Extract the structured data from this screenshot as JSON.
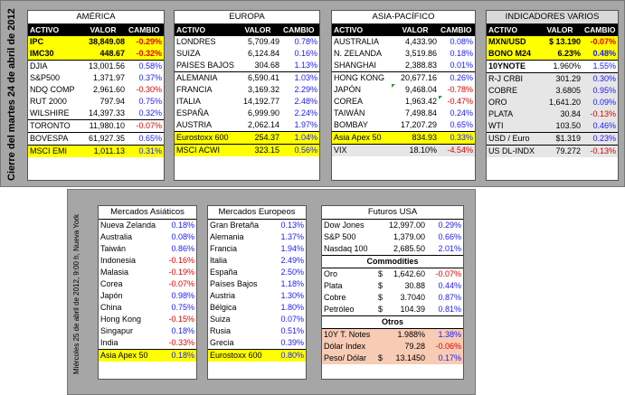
{
  "top_label": "Cierre del martes 24 de abril de 2012",
  "bottom_label": "Miércoles 25 de abril de 2012, 9:00 h, Nueva York",
  "colors": {
    "positive": "#1a1aff",
    "negative": "#e00000",
    "highlight": "#ffff00",
    "panel": "#a6a6a6"
  },
  "america": {
    "title": "AMÉRICA",
    "headers": [
      "ACTIVO",
      "VALOR",
      "CAMBIO"
    ],
    "rows": [
      {
        "name": "IPC",
        "value": "38,849.08",
        "change": "-0.29%"
      },
      {
        "name": "IMC30",
        "value": "448.67",
        "change": "-0.32%"
      },
      {
        "name": "DJIA",
        "value": "13,001.56",
        "change": "0.58%"
      },
      {
        "name": "S&P500",
        "value": "1,371.97",
        "change": "0.37%"
      },
      {
        "name": "NDQ COMP",
        "value": "2,961.60",
        "change": "-0.30%"
      },
      {
        "name": "RUT 2000",
        "value": "797.94",
        "change": "0.75%"
      },
      {
        "name": "WILSHIRE",
        "value": "14,397.33",
        "change": "0.32%"
      },
      {
        "name": "TORONTO",
        "value": "11,980.10",
        "change": "-0.07%"
      },
      {
        "name": "BOVESPA",
        "value": "61,927.35",
        "change": "0.65%"
      }
    ],
    "footer": {
      "name": "MSCI EMI",
      "value": "1,011.13",
      "change": "0.31%"
    }
  },
  "europa": {
    "title": "EUROPA",
    "headers": [
      "ACTIVO",
      "VALOR",
      "CAMBIO"
    ],
    "rows": [
      {
        "name": "LONDRES",
        "value": "5,709.49",
        "change": "0.78%"
      },
      {
        "name": "SUIZA",
        "value": "6,124.84",
        "change": "0.16%"
      },
      {
        "name": "PAISES BAJOS",
        "value": "304.68",
        "change": "1.13%"
      },
      {
        "name": "ALEMANIA",
        "value": "6,590.41",
        "change": "1.03%"
      },
      {
        "name": "FRANCIA",
        "value": "3,169.32",
        "change": "2.29%"
      },
      {
        "name": "ITALIA",
        "value": "14,192.77",
        "change": "2.48%"
      },
      {
        "name": "ESPAÑA",
        "value": "6,999.90",
        "change": "2.24%"
      },
      {
        "name": "AUSTRIA",
        "value": "2,062.14",
        "change": "1.97%"
      },
      {
        "name": "Eurostoxx 600",
        "value": "254.37",
        "change": "1.04%"
      }
    ],
    "footer": {
      "name": "MSCI ACWI",
      "value": "323.15",
      "change": "0.56%"
    }
  },
  "asia": {
    "title": "ASIA-PACÍFICO",
    "headers": [
      "ACTIVO",
      "VALOR",
      "CAMBIO"
    ],
    "rows": [
      {
        "name": "AUSTRALIA",
        "value": "4,433.90",
        "change": "0.08%"
      },
      {
        "name": "N. ZELANDA",
        "value": "3,519.86",
        "change": "0.18%"
      },
      {
        "name": "SHANGHAI",
        "value": "2,388.83",
        "change": "0.01%"
      },
      {
        "name": "HONG KONG",
        "value": "20,677.16",
        "change": "0.26%"
      },
      {
        "name": "JAPÓN",
        "value": "9,468.04",
        "change": "-0.78%"
      },
      {
        "name": "COREA",
        "value": "1,963.42",
        "change": "-0.47%"
      },
      {
        "name": "TAIWÁN",
        "value": "7,498.84",
        "change": "0.24%"
      },
      {
        "name": "BOMBAY",
        "value": "17,207.29",
        "change": "0.65%"
      },
      {
        "name": "Asia Apex 50",
        "value": "834.93",
        "change": "0.33%"
      }
    ],
    "footer": {
      "name": "VIX",
      "value": "18.10%",
      "change": "-4.54%"
    }
  },
  "indicadores": {
    "title": "INDICADORES VARIOS",
    "headers": [
      "ACTIVO",
      "VALOR",
      "CAMBIO"
    ],
    "rows": [
      {
        "name": "MXN/USD",
        "value": "$ 13.190",
        "change": "-0.07%"
      },
      {
        "name": "BONO M24",
        "value": "6.23%",
        "change": "0.48%"
      },
      {
        "name": "10YNOTE",
        "value": "1.960%",
        "change": "1.55%"
      },
      {
        "name": "R-J CRBI",
        "value": "301.29",
        "change": "0.30%"
      },
      {
        "name": "COBRE",
        "value": "3.6805",
        "change": "0.95%"
      },
      {
        "name": "ORO",
        "value": "1,641.20",
        "change": "0.09%"
      },
      {
        "name": "PLATA",
        "value": "30.84",
        "change": "-0.13%"
      },
      {
        "name": "WTI",
        "value": "103.50",
        "change": "0.46%"
      },
      {
        "name": "USD / Euro",
        "value": "$1.319",
        "change": "0.23%"
      }
    ],
    "footer": {
      "name": "US DL-INDX",
      "value": "79.272",
      "change": "-0.13%"
    }
  },
  "asiaticos": {
    "title": "Mercados Asiáticos",
    "rows": [
      {
        "name": "Nueva Zelanda",
        "change": "0.18%"
      },
      {
        "name": "Australia",
        "change": "0.08%"
      },
      {
        "name": "Taiwán",
        "change": "0.86%"
      },
      {
        "name": "Indonesia",
        "change": "-0.16%"
      },
      {
        "name": "Malasia",
        "change": "-0.19%"
      },
      {
        "name": "Corea",
        "change": "-0.07%"
      },
      {
        "name": "Japón",
        "change": "0.98%"
      },
      {
        "name": "China",
        "change": "0.75%"
      },
      {
        "name": "Hong Kong",
        "change": "-0.15%"
      },
      {
        "name": "Singapur",
        "change": "0.18%"
      },
      {
        "name": "India",
        "change": "-0.33%"
      }
    ],
    "footer": {
      "name": "Asia Apex 50",
      "change": "0.18%"
    }
  },
  "europeos": {
    "title": "Mercados Europeos",
    "rows": [
      {
        "name": "Gran Bretaña",
        "change": "0.13%"
      },
      {
        "name": "Alemania",
        "change": "1.37%"
      },
      {
        "name": "Francia",
        "change": "1.94%"
      },
      {
        "name": "Italia",
        "change": "2.49%"
      },
      {
        "name": "España",
        "change": "2.50%"
      },
      {
        "name": "Países Bajos",
        "change": "1.18%"
      },
      {
        "name": "Austria",
        "change": "1.30%"
      },
      {
        "name": "Bélgica",
        "change": "1.80%"
      },
      {
        "name": "Suiza",
        "change": "0.07%"
      },
      {
        "name": "Rusia",
        "change": "0.51%"
      },
      {
        "name": "Grecia",
        "change": "0.39%"
      }
    ],
    "footer": {
      "name": "Eurostoxx 600",
      "change": "0.80%"
    }
  },
  "futuros": {
    "title": "Futuros USA",
    "rows": [
      {
        "name": "Dow Jones",
        "value": "12,997.00",
        "change": "0.29%"
      },
      {
        "name": "S&P 500",
        "value": "1,379.00",
        "change": "0.66%"
      },
      {
        "name": "Nasdaq 100",
        "value": "2,685.50",
        "change": "2.01%"
      }
    ]
  },
  "commodities": {
    "title": "Commodities",
    "rows": [
      {
        "name": "Oro",
        "dollar": "$",
        "value": "1,642.60",
        "change": "-0.07%"
      },
      {
        "name": "Plata",
        "dollar": "$",
        "value": "30.88",
        "change": "0.44%"
      },
      {
        "name": "Cobre",
        "dollar": "$",
        "value": "3.7040",
        "change": "0.87%"
      },
      {
        "name": "Petróleo",
        "dollar": "$",
        "value": "104.39",
        "change": "0.81%"
      }
    ]
  },
  "otros": {
    "title": "Otros",
    "rows": [
      {
        "name": "10Y T. Notes",
        "dollar": "",
        "value": "1.988%",
        "change": "1.38%"
      },
      {
        "name": "Dólar Index",
        "dollar": "",
        "value": "79.28",
        "change": "-0.06%"
      },
      {
        "name": "Peso/ Dólar",
        "dollar": "$",
        "value": "13.1450",
        "change": "0.17%"
      }
    ]
  }
}
